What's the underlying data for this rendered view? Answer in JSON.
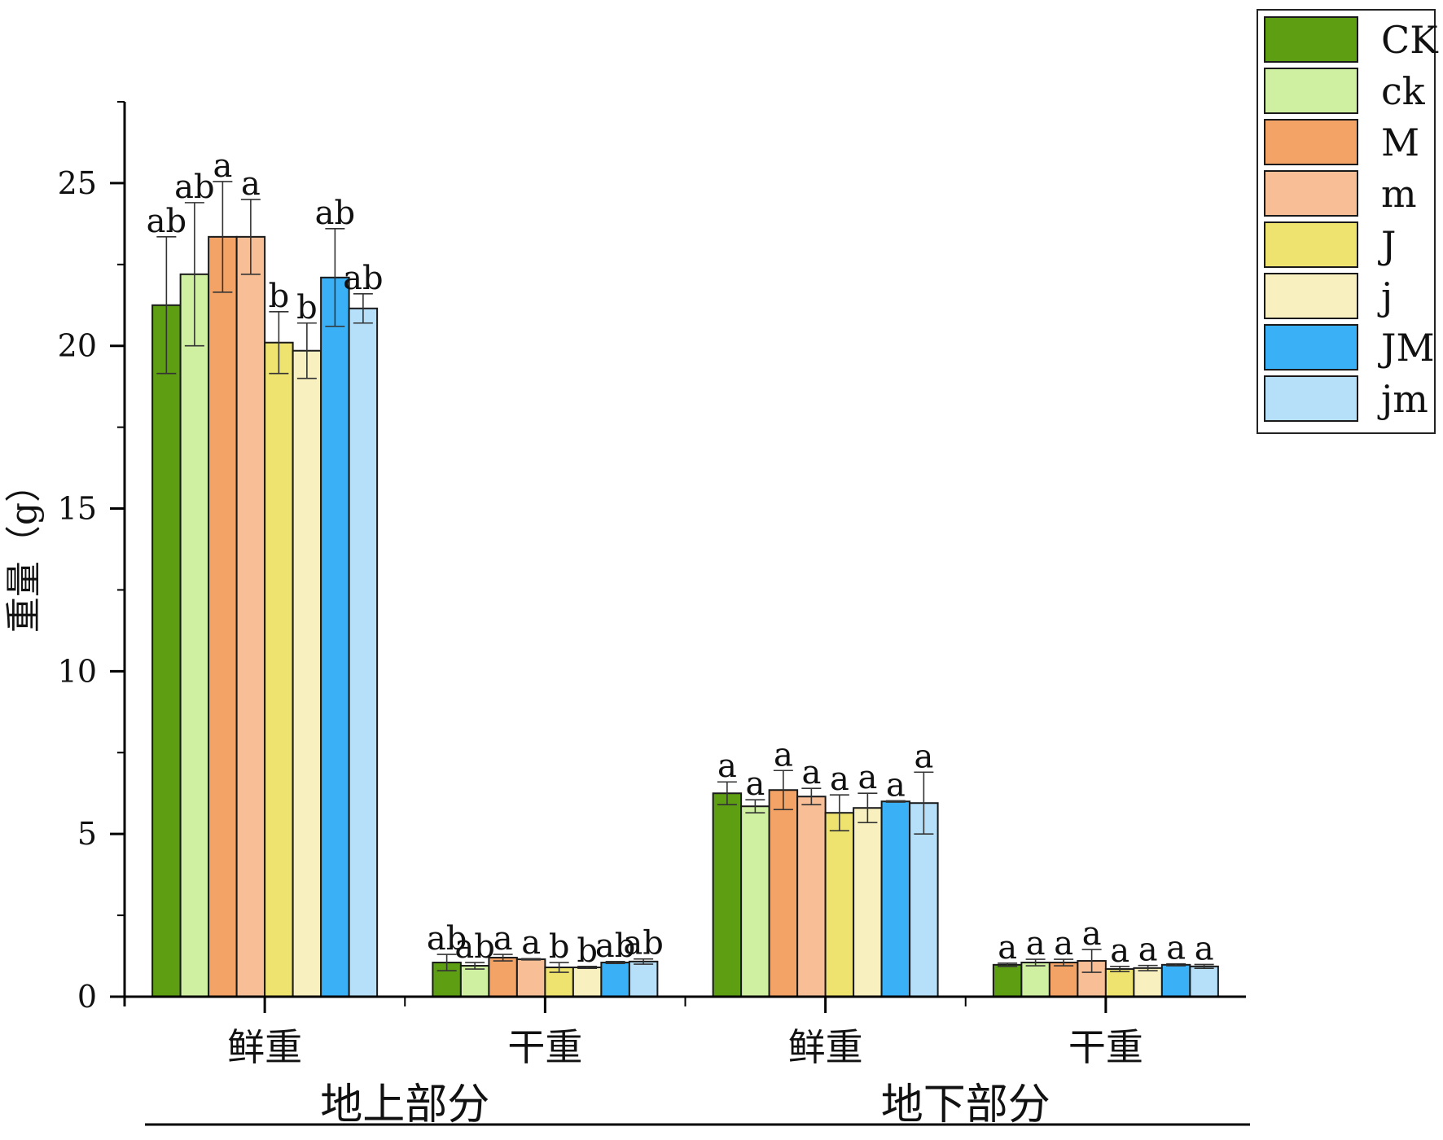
{
  "chart_data": {
    "type": "bar",
    "ylabel": "重量（g）",
    "xlabel": "",
    "ylim": [
      0,
      27.5
    ],
    "yticks": [
      0,
      5,
      10,
      15,
      20,
      25
    ],
    "categories": [
      "鲜重",
      "干重",
      "鲜重",
      "干重"
    ],
    "groups": [
      {
        "label": "地上部分",
        "categories": [
          0,
          1
        ]
      },
      {
        "label": "地下部分",
        "categories": [
          2,
          3
        ]
      }
    ],
    "legend_position": "top-right",
    "series": [
      {
        "name": "CK",
        "color": "#5E9E12",
        "values": [
          21.25,
          1.05,
          6.25,
          0.98
        ],
        "errors": [
          2.1,
          0.25,
          0.35,
          0.05
        ],
        "letters": [
          "ab",
          "ab",
          "a",
          "a"
        ]
      },
      {
        "name": "ck",
        "color": "#CFF0A0",
        "values": [
          22.2,
          0.95,
          5.85,
          1.05
        ],
        "errors": [
          2.2,
          0.1,
          0.2,
          0.1
        ],
        "letters": [
          "ab",
          "ab",
          "a",
          "a"
        ]
      },
      {
        "name": "M",
        "color": "#F4A366",
        "values": [
          23.35,
          1.2,
          6.35,
          1.05
        ],
        "errors": [
          1.7,
          0.1,
          0.6,
          0.1
        ],
        "letters": [
          "a",
          "a",
          "a",
          "a"
        ]
      },
      {
        "name": "m",
        "color": "#F8BE96",
        "values": [
          23.35,
          1.15,
          6.15,
          1.1
        ],
        "errors": [
          1.15,
          0.02,
          0.25,
          0.35
        ],
        "letters": [
          "a",
          "a",
          "a",
          "a"
        ]
      },
      {
        "name": "J",
        "color": "#EDE36E",
        "values": [
          20.1,
          0.9,
          5.65,
          0.85
        ],
        "errors": [
          0.95,
          0.15,
          0.55,
          0.08
        ],
        "letters": [
          "b",
          "b",
          "a",
          "a"
        ]
      },
      {
        "name": "j",
        "color": "#F8F0BE",
        "values": [
          19.85,
          0.9,
          5.8,
          0.88
        ],
        "errors": [
          0.85,
          0.03,
          0.45,
          0.08
        ],
        "letters": [
          "b",
          "b",
          "a",
          "a"
        ]
      },
      {
        "name": "JM",
        "color": "#3AB1F7",
        "values": [
          22.1,
          1.05,
          6.0,
          0.98
        ],
        "errors": [
          1.5,
          0.03,
          0.02,
          0.03
        ],
        "letters": [
          "ab",
          "ab",
          "a",
          "a"
        ]
      },
      {
        "name": "jm",
        "color": "#B6E0FA",
        "values": [
          21.15,
          1.08,
          5.95,
          0.93
        ],
        "errors": [
          0.45,
          0.08,
          0.95,
          0.06
        ],
        "letters": [
          "ab",
          "ab",
          "a",
          "a"
        ]
      }
    ]
  }
}
